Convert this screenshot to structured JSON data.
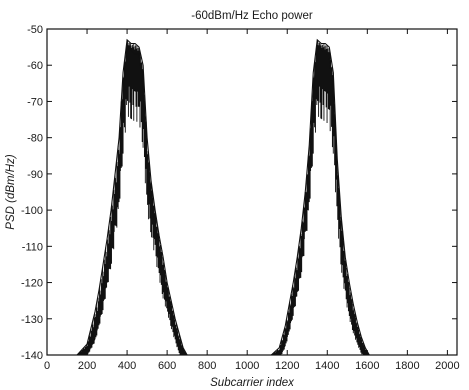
{
  "chart_data": {
    "type": "line",
    "title": "-60dBm/Hz Echo power",
    "xlabel": "Subcarrier index",
    "ylabel": "PSD (dBm/Hz)",
    "xlim": [
      0,
      2048
    ],
    "ylim": [
      -140,
      -50
    ],
    "x_ticks": [
      "0",
      "200",
      "400",
      "600",
      "800",
      "1000",
      "1200",
      "1400",
      "1600",
      "1800",
      "2000"
    ],
    "y_ticks": [
      "-50",
      "-60",
      "-70",
      "-80",
      "-90",
      "-100",
      "-110",
      "-120",
      "-130",
      "-140"
    ],
    "grid": false,
    "legend": "none",
    "series_color": "#111111",
    "series": [
      {
        "x": [
          150,
          200,
          240,
          260,
          280,
          300,
          320,
          340,
          360,
          380,
          400,
          420,
          440,
          460,
          480,
          500,
          520,
          540,
          560,
          580,
          600,
          620,
          640,
          660,
          680,
          700
        ],
        "y": [
          -140,
          -138,
          -133,
          -128,
          -122,
          -115,
          -107,
          -98,
          -88,
          -68,
          -55,
          -56,
          -57,
          -57,
          -66,
          -88,
          -96,
          -104,
          -111,
          -118,
          -123,
          -128,
          -133,
          -137,
          -139,
          -140
        ],
        "envelope": [
          -140,
          -137,
          -128,
          -122,
          -115,
          -108,
          -100,
          -90,
          -80,
          -62,
          -53,
          -54,
          -54,
          -55,
          -60,
          -80,
          -92,
          -100,
          -107,
          -113,
          -120,
          -125,
          -130,
          -134,
          -138,
          -140
        ]
      },
      {
        "x": [
          1120,
          1160,
          1190,
          1210,
          1230,
          1250,
          1270,
          1290,
          1310,
          1330,
          1350,
          1370,
          1390,
          1410,
          1430,
          1450,
          1470,
          1490,
          1510,
          1530,
          1550,
          1570,
          1590,
          1610
        ],
        "y": [
          -140,
          -139,
          -135,
          -130,
          -124,
          -118,
          -110,
          -100,
          -88,
          -68,
          -55,
          -56,
          -57,
          -58,
          -68,
          -92,
          -108,
          -118,
          -125,
          -130,
          -134,
          -137,
          -139,
          -140
        ],
        "envelope": [
          -140,
          -138,
          -132,
          -126,
          -120,
          -113,
          -105,
          -95,
          -82,
          -62,
          -53,
          -54,
          -54,
          -55,
          -62,
          -86,
          -102,
          -113,
          -120,
          -126,
          -131,
          -135,
          -138,
          -140
        ]
      }
    ]
  }
}
